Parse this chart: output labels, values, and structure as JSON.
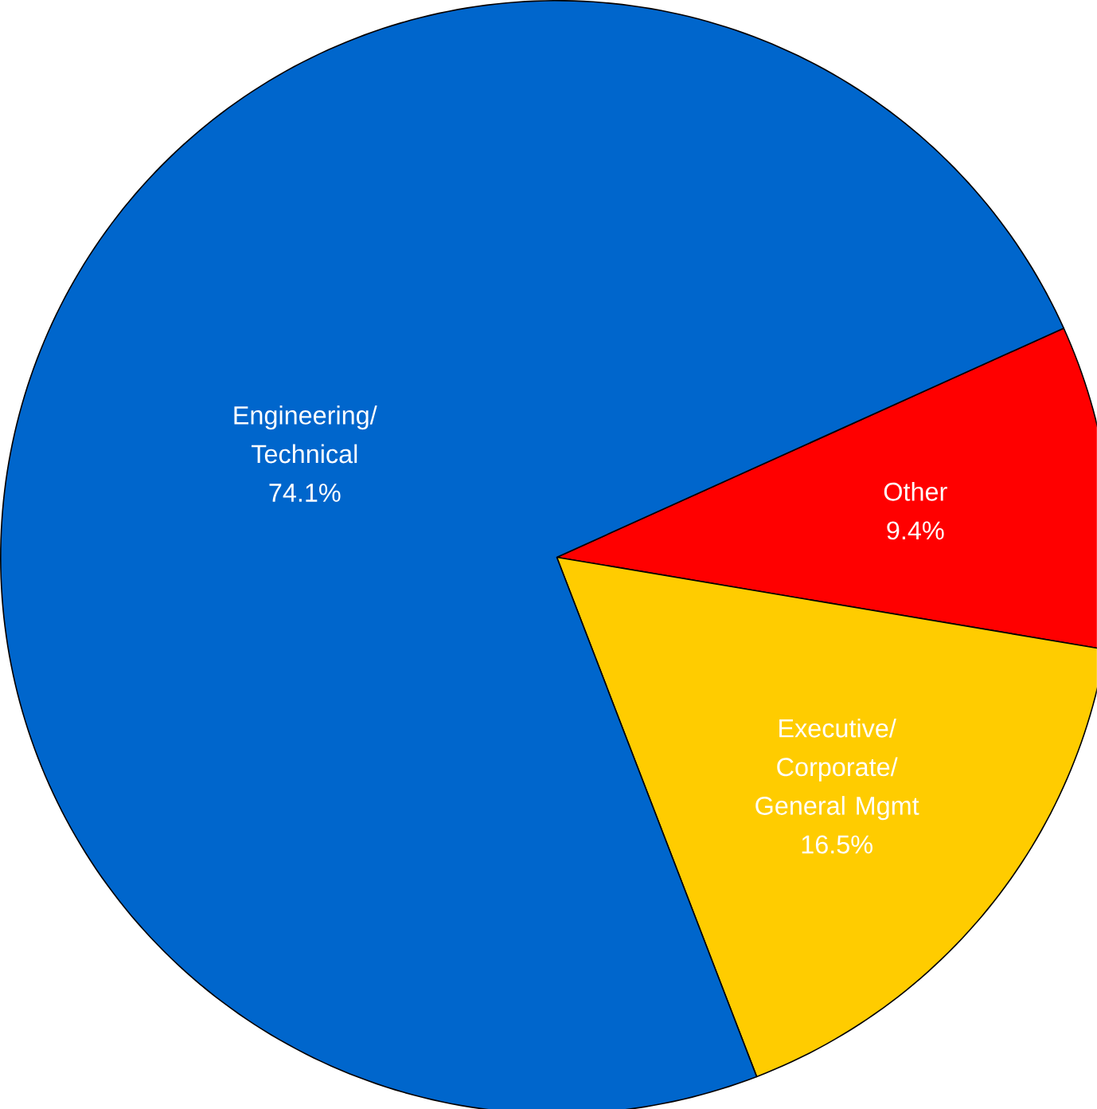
{
  "chart_data": {
    "type": "pie",
    "categories": [
      "Other",
      "Executive/ Corporate/ General Mgmt",
      "Engineering/ Technical"
    ],
    "values": [
      9.4,
      16.5,
      74.1
    ],
    "value_labels": [
      "9.4%",
      "16.5%",
      "74.1%"
    ],
    "colors": [
      "#ff0000",
      "#ffcc00",
      "#0066cc"
    ]
  }
}
